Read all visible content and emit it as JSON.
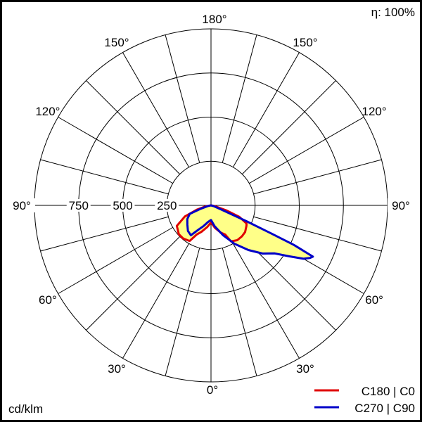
{
  "chart_data": {
    "type": "polar",
    "efficiency_label": "η: 100%",
    "unit_label": "cd/klm",
    "radial_ticks": [
      250,
      500,
      750,
      1000
    ],
    "radial_tick_labels": [
      "250",
      "500",
      "750"
    ],
    "rmax": 1000,
    "angle_step": 15,
    "angle_labels": {
      "left": [
        "0°",
        "30°",
        "60°",
        "90°",
        "120°",
        "150°",
        "180°"
      ],
      "right": [
        "30°",
        "60°",
        "90°",
        "120°",
        "150°"
      ],
      "angles": [
        0,
        30,
        60,
        90,
        120,
        150,
        180
      ]
    },
    "fill_color": "#ffff88",
    "series": [
      {
        "name": "C180 | C0",
        "color": "#e00000",
        "left_plane": {
          "gamma": [
            0,
            10,
            20,
            26,
            31,
            40,
            48,
            59,
            67,
            73,
            80,
            90
          ],
          "values": [
            97,
            125,
            160,
            183,
            235,
            245,
            245,
            226,
            161,
            84,
            30,
            0
          ]
        },
        "right_plane": {
          "gamma": [
            0,
            10,
            20,
            26,
            29,
            37,
            45,
            52,
            60,
            63,
            68,
            72,
            80,
            90
          ],
          "values": [
            97,
            130,
            165,
            184,
            233,
            247,
            248,
            245,
            232,
            226,
            173,
            90,
            20,
            0
          ]
        }
      },
      {
        "name": "C270 | C90",
        "color": "#0000c8",
        "left_plane": {
          "gamma": [
            0,
            10,
            20,
            27,
            34,
            42,
            51,
            60,
            68,
            72,
            80,
            90
          ],
          "values": [
            83,
            95,
            125,
            153,
            204,
            195,
            172,
            155,
            130,
            60,
            15,
            0
          ]
        },
        "right_plane": {
          "gamma": [
            0,
            10,
            22,
            31.5,
            40,
            47,
            53,
            57,
            60,
            62,
            63.3,
            64.5,
            65,
            66,
            68,
            75,
            90
          ],
          "values": [
            83,
            120,
            182,
            255,
            330,
            400,
            452,
            530,
            605,
            635,
            646,
            520,
            380,
            220,
            60,
            15,
            0
          ]
        }
      }
    ]
  }
}
